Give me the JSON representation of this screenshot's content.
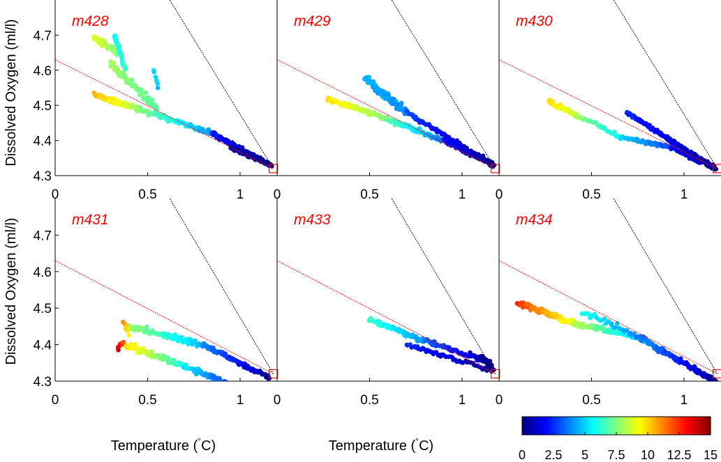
{
  "figure": {
    "ylabel": "Dissolved Oxygen (ml/l)",
    "xlabel_text": "Temperature (",
    "xlabel_deg": "°",
    "xlabel_unit": "C)"
  },
  "colorbar": {
    "colormap": "jet",
    "min": 0,
    "max": 15,
    "ticks": [
      "0",
      "2.5",
      "5",
      "7.5",
      "10",
      "12.5",
      "15"
    ]
  },
  "chart_data": [
    {
      "type": "scatter",
      "title": "m428",
      "xlim": [
        0,
        1.2
      ],
      "ylim": [
        4.3,
        4.8
      ],
      "xticks": [
        "0",
        "0.5",
        "1"
      ],
      "yticks": [
        "4.3",
        "4.4",
        "4.5",
        "4.6",
        "4.7"
      ],
      "red_line": {
        "x": [
          0,
          1.18
        ],
        "y": [
          4.63,
          4.32
        ]
      },
      "black_line": {
        "x": [
          0.62,
          1.18
        ],
        "y": [
          4.8,
          4.32
        ]
      },
      "marker": {
        "x": 1.18,
        "y": 4.32
      },
      "strokes": [
        {
          "x0": 0.21,
          "y0": 4.53,
          "x1": 0.42,
          "y1": 4.495,
          "c0": 10.5,
          "c1": 8.5,
          "n": 70,
          "jy": 0.008
        },
        {
          "x0": 0.42,
          "y0": 4.495,
          "x1": 0.85,
          "y1": 4.42,
          "c0": 8.0,
          "c1": 4.0,
          "n": 80,
          "jy": 0.008
        },
        {
          "x0": 0.85,
          "y0": 4.42,
          "x1": 1.16,
          "y1": 4.33,
          "c0": 2.0,
          "c1": 0.3,
          "n": 110,
          "jy": 0.007
        },
        {
          "x0": 0.21,
          "y0": 4.69,
          "x1": 0.34,
          "y1": 4.65,
          "c0": 9.0,
          "c1": 7.5,
          "n": 30,
          "jy": 0.012
        },
        {
          "x0": 0.32,
          "y0": 4.7,
          "x1": 0.38,
          "y1": 4.6,
          "c0": 5.5,
          "c1": 6.5,
          "n": 35,
          "jy": 0.01
        },
        {
          "x0": 0.3,
          "y0": 4.62,
          "x1": 0.55,
          "y1": 4.49,
          "c0": 8.0,
          "c1": 7.0,
          "n": 80,
          "jy": 0.015
        },
        {
          "x0": 0.53,
          "y0": 4.6,
          "x1": 0.56,
          "y1": 4.55,
          "c0": 5.0,
          "c1": 5.0,
          "n": 6,
          "jy": 0.005
        },
        {
          "x0": 0.95,
          "y0": 4.38,
          "x1": 1.17,
          "y1": 4.33,
          "c0": 0.5,
          "c1": 0.1,
          "n": 60,
          "jy": 0.005
        }
      ]
    },
    {
      "type": "scatter",
      "title": "m429",
      "xlim": [
        0,
        1.2
      ],
      "ylim": [
        4.3,
        4.8
      ],
      "xticks": [
        "0",
        "0.5",
        "1"
      ],
      "yticks": [],
      "red_line": {
        "x": [
          0,
          1.18
        ],
        "y": [
          4.63,
          4.32
        ]
      },
      "black_line": {
        "x": [
          0.62,
          1.18
        ],
        "y": [
          4.8,
          4.32
        ]
      },
      "marker": {
        "x": 1.18,
        "y": 4.32
      },
      "strokes": [
        {
          "x0": 0.27,
          "y0": 4.52,
          "x1": 0.6,
          "y1": 4.46,
          "c0": 10.0,
          "c1": 7.5,
          "n": 90,
          "jy": 0.008
        },
        {
          "x0": 0.6,
          "y0": 4.46,
          "x1": 0.9,
          "y1": 4.4,
          "c0": 7.0,
          "c1": 3.5,
          "n": 60,
          "jy": 0.008
        },
        {
          "x0": 0.9,
          "y0": 4.4,
          "x1": 1.17,
          "y1": 4.33,
          "c0": 2.0,
          "c1": 0.3,
          "n": 80,
          "jy": 0.007
        },
        {
          "x0": 0.47,
          "y0": 4.58,
          "x1": 0.7,
          "y1": 4.48,
          "c0": 4.5,
          "c1": 4.0,
          "n": 80,
          "jy": 0.015
        },
        {
          "x0": 0.7,
          "y0": 4.48,
          "x1": 1.17,
          "y1": 4.33,
          "c0": 3.0,
          "c1": 0.3,
          "n": 80,
          "jy": 0.007
        }
      ]
    },
    {
      "type": "scatter",
      "title": "m430",
      "xlim": [
        0,
        1.2
      ],
      "ylim": [
        4.3,
        4.8
      ],
      "xticks": [
        "0",
        "0.5",
        "1"
      ],
      "yticks": [],
      "red_line": {
        "x": [
          0,
          1.18
        ],
        "y": [
          4.63,
          4.32
        ]
      },
      "black_line": {
        "x": [
          0.62,
          1.18
        ],
        "y": [
          4.8,
          4.32
        ]
      },
      "marker": {
        "x": 1.18,
        "y": 4.32
      },
      "strokes": [
        {
          "x0": 0.27,
          "y0": 4.51,
          "x1": 0.42,
          "y1": 4.47,
          "c0": 10.0,
          "c1": 8.5,
          "n": 40,
          "jy": 0.008
        },
        {
          "x0": 0.42,
          "y0": 4.47,
          "x1": 0.66,
          "y1": 4.41,
          "c0": 8.0,
          "c1": 5.5,
          "n": 35,
          "jy": 0.007
        },
        {
          "x0": 0.66,
          "y0": 4.41,
          "x1": 0.93,
          "y1": 4.38,
          "c0": 5.0,
          "c1": 3.0,
          "n": 50,
          "jy": 0.006
        },
        {
          "x0": 0.93,
          "y0": 4.38,
          "x1": 1.17,
          "y1": 4.32,
          "c0": 2.0,
          "c1": 0.3,
          "n": 60,
          "jy": 0.006
        },
        {
          "x0": 0.69,
          "y0": 4.48,
          "x1": 1.17,
          "y1": 4.32,
          "c0": 2.5,
          "c1": 0.3,
          "n": 130,
          "jy": 0.007
        }
      ]
    },
    {
      "type": "scatter",
      "title": "m431",
      "xlim": [
        0,
        1.2
      ],
      "ylim": [
        4.3,
        4.8
      ],
      "xticks": [
        "0",
        "0.5",
        "1"
      ],
      "yticks": [
        "4.3",
        "4.4",
        "4.5",
        "4.6",
        "4.7"
      ],
      "red_line": {
        "x": [
          0,
          1.18
        ],
        "y": [
          4.63,
          4.32
        ]
      },
      "black_line": {
        "x": [
          0.62,
          1.18
        ],
        "y": [
          4.8,
          4.32
        ]
      },
      "marker": {
        "x": 1.18,
        "y": 4.32
      },
      "strokes": [
        {
          "x0": 0.4,
          "y0": 4.45,
          "x1": 0.8,
          "y1": 4.4,
          "c0": 8.0,
          "c1": 4.5,
          "n": 90,
          "jy": 0.01
        },
        {
          "x0": 0.8,
          "y0": 4.4,
          "x1": 1.16,
          "y1": 4.31,
          "c0": 4.0,
          "c1": 0.3,
          "n": 80,
          "jy": 0.008
        },
        {
          "x0": 0.38,
          "y0": 4.4,
          "x1": 0.7,
          "y1": 4.34,
          "c0": 10.0,
          "c1": 6.0,
          "n": 80,
          "jy": 0.01
        },
        {
          "x0": 0.7,
          "y0": 4.34,
          "x1": 1.15,
          "y1": 4.25,
          "c0": 5.5,
          "c1": 0.3,
          "n": 100,
          "jy": 0.009
        },
        {
          "x0": 0.34,
          "y0": 4.39,
          "x1": 0.37,
          "y1": 4.41,
          "c0": 14.0,
          "c1": 12.0,
          "n": 8,
          "jy": 0.006
        },
        {
          "x0": 0.37,
          "y0": 4.46,
          "x1": 0.4,
          "y1": 4.43,
          "c0": 11.0,
          "c1": 9.5,
          "n": 10,
          "jy": 0.008
        },
        {
          "x0": 1.12,
          "y0": 4.26,
          "x1": 1.17,
          "y1": 4.24,
          "c0": 0.3,
          "c1": 0.1,
          "n": 25,
          "jy": 0.006
        }
      ]
    },
    {
      "type": "scatter",
      "title": "m433",
      "xlim": [
        0,
        1.2
      ],
      "ylim": [
        4.3,
        4.8
      ],
      "xticks": [
        "0",
        "0.5",
        "1"
      ],
      "yticks": [],
      "red_line": {
        "x": [
          0,
          1.18
        ],
        "y": [
          4.63,
          4.32
        ]
      },
      "black_line": {
        "x": [
          0.62,
          1.18
        ],
        "y": [
          4.8,
          4.32
        ]
      },
      "marker": {
        "x": 1.18,
        "y": 4.32
      },
      "strokes": [
        {
          "x0": 0.5,
          "y0": 4.47,
          "x1": 0.8,
          "y1": 4.41,
          "c0": 6.5,
          "c1": 4.0,
          "n": 70,
          "jy": 0.008
        },
        {
          "x0": 0.8,
          "y0": 4.41,
          "x1": 1.16,
          "y1": 4.35,
          "c0": 3.5,
          "c1": 0.5,
          "n": 70,
          "jy": 0.008
        },
        {
          "x0": 0.7,
          "y0": 4.4,
          "x1": 1.16,
          "y1": 4.33,
          "c0": 2.5,
          "c1": 0.3,
          "n": 50,
          "jy": 0.007
        },
        {
          "x0": 1.1,
          "y0": 4.37,
          "x1": 1.17,
          "y1": 4.33,
          "c0": 0.5,
          "c1": 0.2,
          "n": 40,
          "jy": 0.008
        }
      ]
    },
    {
      "type": "scatter",
      "title": "m434",
      "xlim": [
        0,
        1.2
      ],
      "ylim": [
        4.3,
        4.8
      ],
      "xticks": [
        "0",
        "0.5",
        "1"
      ],
      "yticks": [],
      "red_line": {
        "x": [
          0,
          1.18
        ],
        "y": [
          4.63,
          4.32
        ]
      },
      "black_line": {
        "x": [
          0.62,
          1.18
        ],
        "y": [
          4.8,
          4.32
        ]
      },
      "marker": {
        "x": 1.18,
        "y": 4.32
      },
      "strokes": [
        {
          "x0": 0.1,
          "y0": 4.515,
          "x1": 0.4,
          "y1": 4.46,
          "c0": 12.5,
          "c1": 9.0,
          "n": 110,
          "jy": 0.008
        },
        {
          "x0": 0.4,
          "y0": 4.46,
          "x1": 0.75,
          "y1": 4.42,
          "c0": 8.5,
          "c1": 5.0,
          "n": 90,
          "jy": 0.009
        },
        {
          "x0": 0.75,
          "y0": 4.42,
          "x1": 1.17,
          "y1": 4.3,
          "c0": 4.5,
          "c1": 0.3,
          "n": 130,
          "jy": 0.008
        },
        {
          "x0": 0.45,
          "y0": 4.49,
          "x1": 0.8,
          "y1": 4.41,
          "c0": 6.0,
          "c1": 3.5,
          "n": 40,
          "jy": 0.012
        }
      ]
    }
  ]
}
